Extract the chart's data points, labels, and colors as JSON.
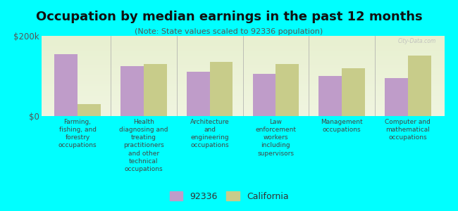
{
  "title": "Occupation by median earnings in the past 12 months",
  "subtitle": "(Note: State values scaled to 92336 population)",
  "categories": [
    "Farming,\nfishing, and\nforestry\noccupations",
    "Health\ndiagnosing and\ntreating\npractitioners\nand other\ntechnical\noccupations",
    "Architecture\nand\nengineering\noccupations",
    "Law\nenforcement\nworkers\nincluding\nsupervisors",
    "Management\noccupations",
    "Computer and\nmathematical\noccupations"
  ],
  "values_92336": [
    155000,
    125000,
    110000,
    105000,
    100000,
    95000
  ],
  "values_california": [
    30000,
    130000,
    135000,
    130000,
    120000,
    150000
  ],
  "color_92336": "#bf9cc9",
  "color_california": "#c8cc8a",
  "background_color": "#00ffff",
  "plot_bg_top": "#e8f0d0",
  "plot_bg_bottom": "#f0f5e0",
  "ylim": [
    0,
    200000
  ],
  "ytick_labels": [
    "$0",
    "$200k"
  ],
  "legend_92336": "92336",
  "legend_california": "California",
  "watermark": "City-Data.com",
  "bar_width": 0.35,
  "title_fontsize": 13,
  "subtitle_fontsize": 8,
  "tick_label_fontsize": 6.5,
  "ytick_fontsize": 8.5
}
